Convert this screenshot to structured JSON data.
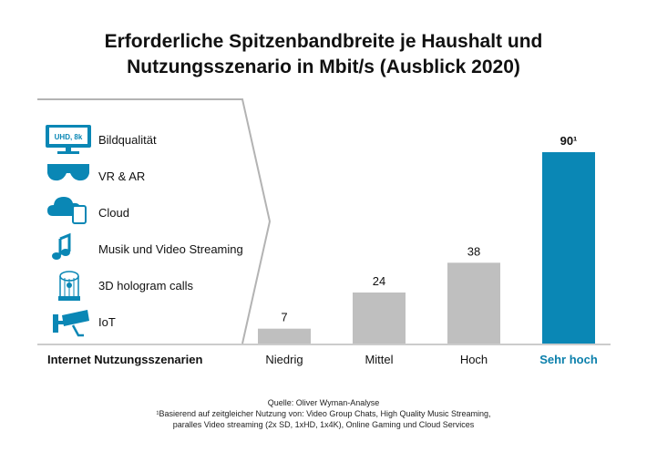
{
  "title": {
    "line1": "Erforderliche Spitzenbandbreite je Haushalt und",
    "line2": "Nutzungsszenario in Mbit/s (Ausblick 2020)"
  },
  "scenarios": [
    {
      "label": "Bildqualität",
      "icon": "uhd-monitor-icon",
      "icon_text": "UHD, 8k"
    },
    {
      "label": "VR & AR",
      "icon": "vr-glasses-icon"
    },
    {
      "label": "Cloud",
      "icon": "cloud-tablet-icon"
    },
    {
      "label": "Musik und Video Streaming",
      "icon": "music-note-icon"
    },
    {
      "label": "3D hologram calls",
      "icon": "hologram-icon"
    },
    {
      "label": "IoT",
      "icon": "security-camera-icon"
    }
  ],
  "colors": {
    "accent": "#0a87b5",
    "bar_gray": "#bfbfbf",
    "highlight_text": "#0a7fab"
  },
  "chart_data": {
    "type": "bar",
    "title": "Erforderliche Spitzenbandbreite je Haushalt und Nutzungsszenario in Mbit/s (Ausblick 2020)",
    "xlabel": "Internet Nutzungsszenarien",
    "ylabel": "",
    "categories": [
      "Niedrig",
      "Mittel",
      "Hoch",
      "Sehr hoch"
    ],
    "values": [
      7,
      24,
      38,
      90
    ],
    "value_labels": [
      "7",
      "24",
      "38",
      "90¹"
    ],
    "highlight_index": 3,
    "ylim": [
      0,
      90
    ],
    "grid": false,
    "legend": "none"
  },
  "footnote": {
    "source": "Quelle: Oliver Wyman-Analyse",
    "note1": "¹Basierend auf zeitgleicher Nutzung von: Video Group Chats,  High Quality Music Streaming,",
    "note2": "paralles Video streaming (2x SD, 1xHD, 1x4K), Online Gaming und Cloud Services"
  }
}
